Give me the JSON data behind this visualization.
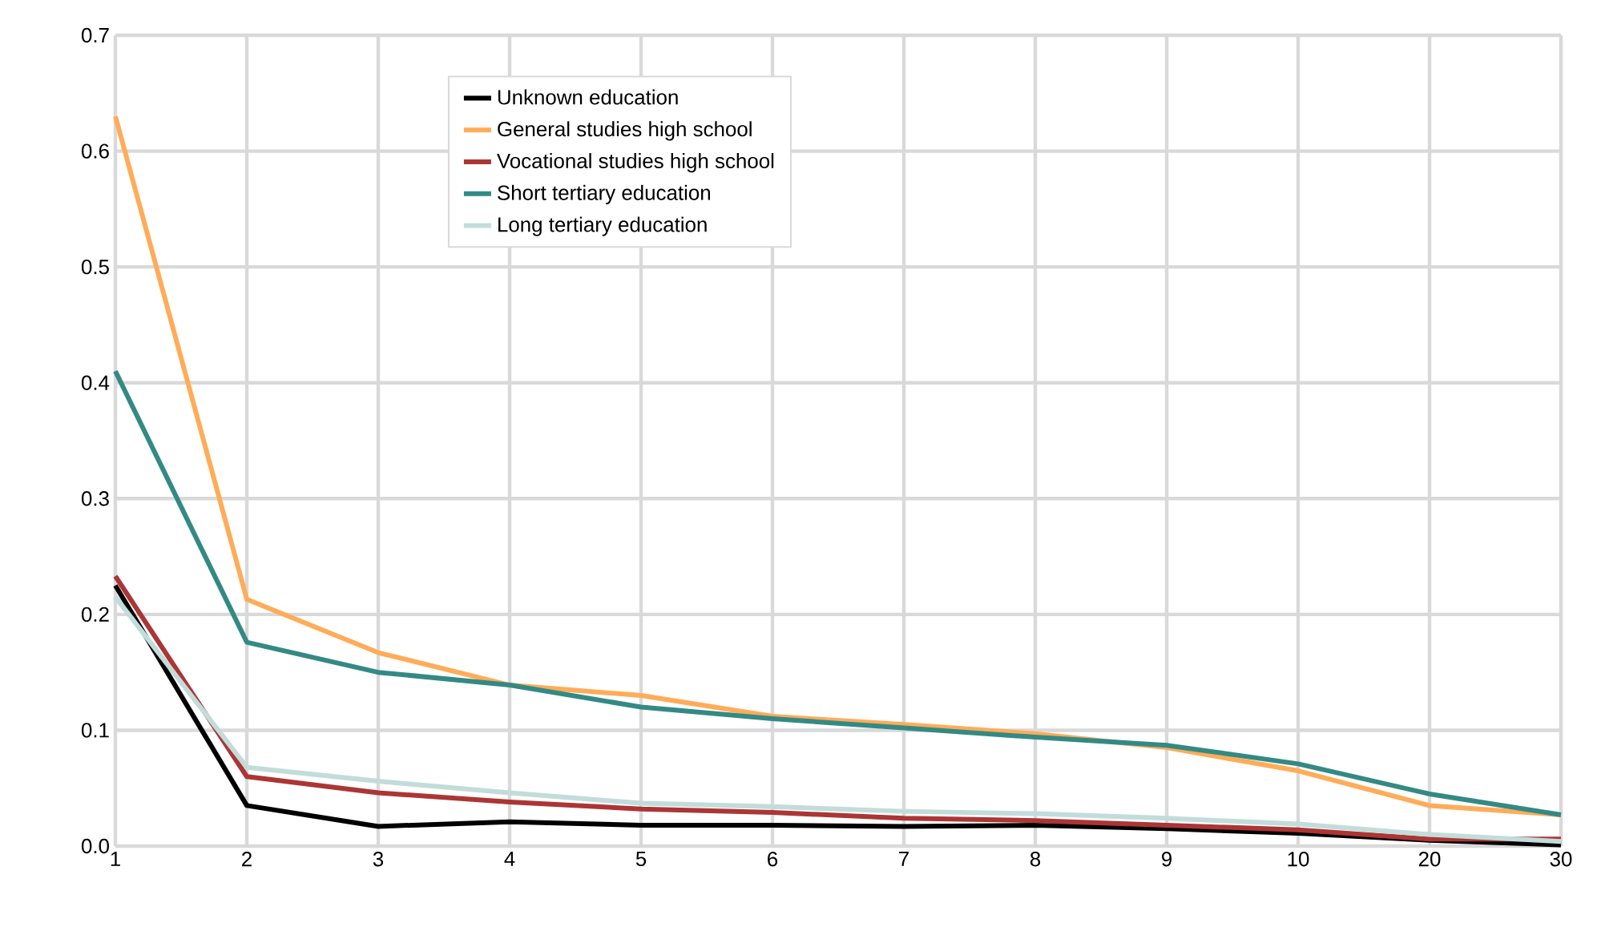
{
  "chart_data": {
    "type": "line",
    "categories": [
      "1",
      "2",
      "3",
      "4",
      "5",
      "6",
      "7",
      "8",
      "9",
      "10",
      "20",
      "30"
    ],
    "series": [
      {
        "name": "Unknown education",
        "color": "#000000",
        "values": [
          0.225,
          0.035,
          0.017,
          0.021,
          0.018,
          0.018,
          0.017,
          0.018,
          0.015,
          0.011,
          0.005,
          0.001
        ]
      },
      {
        "name": "General studies high school",
        "color": "#ffac59",
        "values": [
          0.63,
          0.213,
          0.167,
          0.139,
          0.13,
          0.112,
          0.105,
          0.097,
          0.085,
          0.065,
          0.035,
          0.027
        ]
      },
      {
        "name": "Vocational studies high school",
        "color": "#ac3535",
        "values": [
          0.233,
          0.06,
          0.046,
          0.038,
          0.032,
          0.029,
          0.024,
          0.022,
          0.018,
          0.014,
          0.006,
          0.006
        ]
      },
      {
        "name": "Short tertiary education",
        "color": "#338a84",
        "values": [
          0.41,
          0.176,
          0.15,
          0.139,
          0.12,
          0.11,
          0.102,
          0.094,
          0.087,
          0.071,
          0.045,
          0.027
        ]
      },
      {
        "name": "Long tertiary education",
        "color": "#c2dcda",
        "values": [
          0.215,
          0.068,
          0.056,
          0.046,
          0.037,
          0.034,
          0.03,
          0.028,
          0.024,
          0.019,
          0.01,
          0.004
        ]
      }
    ],
    "ylim": [
      0,
      0.7
    ],
    "yticks": [
      {
        "value": 0,
        "label": "0.0"
      },
      0.1,
      0.2,
      0.3,
      0.4,
      0.5,
      0.6,
      0.7
    ],
    "grid": true,
    "legend": "top",
    "marker": "none",
    "line_style": "solid"
  }
}
